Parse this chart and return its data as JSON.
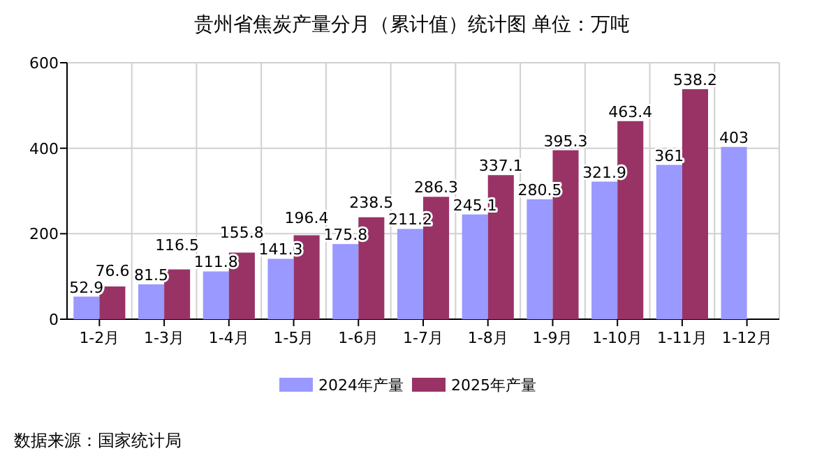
{
  "chart_data": {
    "type": "bar",
    "title": "贵州省焦炭产量分月（累计值）统计图 单位：万吨",
    "categories": [
      "1-2月",
      "1-3月",
      "1-4月",
      "1-5月",
      "1-6月",
      "1-7月",
      "1-8月",
      "1-9月",
      "1-10月",
      "1-11月",
      "1-12月"
    ],
    "series": [
      {
        "name": "2024年产量",
        "color": "#9999ff",
        "values": [
          52.9,
          81.5,
          111.8,
          141.3,
          175.8,
          211.2,
          245.1,
          280.5,
          321.9,
          361,
          403
        ]
      },
      {
        "name": "2025年产量",
        "color": "#993366",
        "values": [
          76.6,
          116.5,
          155.8,
          196.4,
          238.5,
          286.3,
          337.1,
          395.3,
          463.4,
          538.2,
          null
        ]
      }
    ],
    "ylim": [
      0,
      600
    ],
    "yticks": [
      0,
      200,
      400,
      600
    ],
    "grid": true,
    "legend": "bottom",
    "data_labels": true,
    "annotations": [
      "数据来源：国家统计局"
    ]
  }
}
